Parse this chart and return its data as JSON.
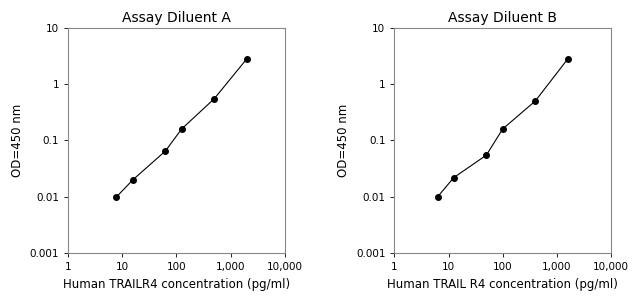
{
  "plot_A": {
    "title": "Assay Diluent A",
    "xlabel": "Human TRAILR4 concentration (pg/ml)",
    "ylabel": "OD=450 nm",
    "x": [
      7.8,
      15.6,
      62.5,
      125,
      500,
      2000
    ],
    "y": [
      0.01,
      0.02,
      0.065,
      0.16,
      0.55,
      2.8
    ],
    "xlim": [
      1,
      10000
    ],
    "ylim": [
      0.001,
      10
    ]
  },
  "plot_B": {
    "title": "Assay Diluent B",
    "xlabel": "Human TRAIL R4 concentration (pg/ml)",
    "ylabel": "OD=450 nm",
    "x": [
      6.25,
      12.5,
      50,
      100,
      400,
      1600
    ],
    "y": [
      0.01,
      0.022,
      0.055,
      0.16,
      0.5,
      2.8
    ],
    "xlim": [
      1,
      10000
    ],
    "ylim": [
      0.001,
      10
    ]
  },
  "line_color": "#000000",
  "marker": "o",
  "marker_size": 4,
  "marker_facecolor": "#000000",
  "bg_color": "#ffffff",
  "fig_bg_color": "#ffffff",
  "title_fontsize": 10,
  "label_fontsize": 8.5,
  "tick_fontsize": 7.5
}
